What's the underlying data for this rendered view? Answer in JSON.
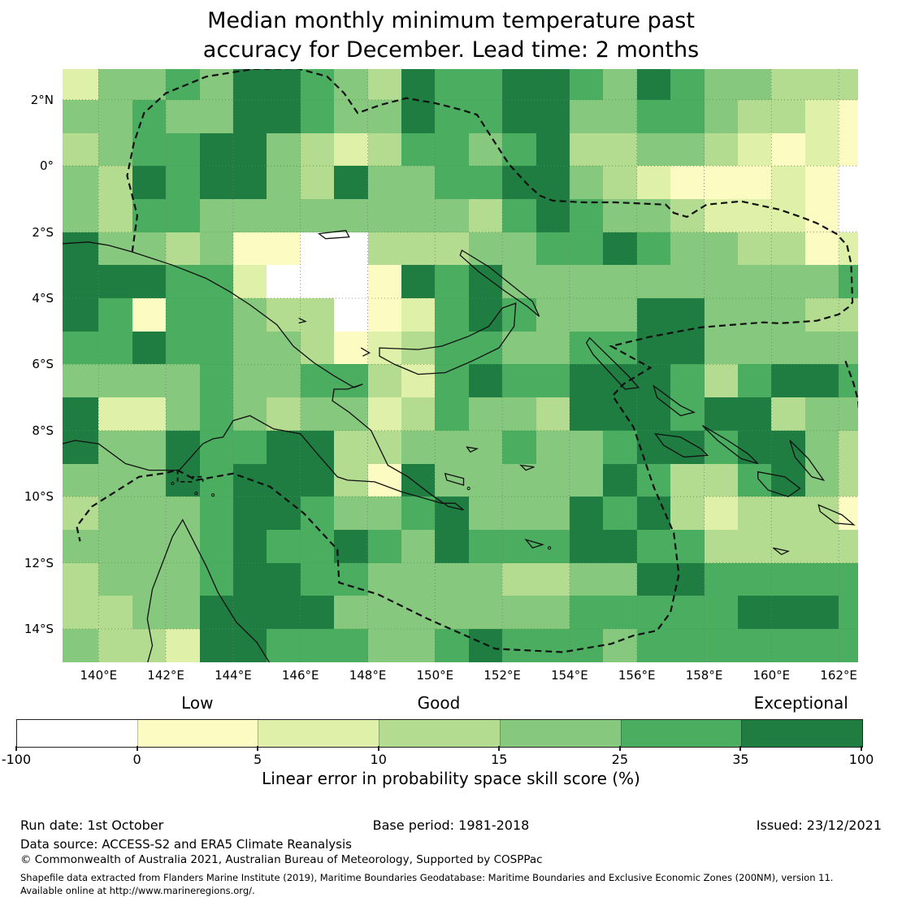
{
  "title": {
    "line1": "Median monthly minimum temperature past",
    "line2": "accuracy for December. Lead time: 2 months"
  },
  "map": {
    "x_tick_labels": [
      "140°E",
      "142°E",
      "144°E",
      "146°E",
      "148°E",
      "150°E",
      "152°E",
      "154°E",
      "156°E",
      "158°E",
      "160°E",
      "162°E"
    ],
    "y_tick_labels": [
      "2°N",
      "0°",
      "2°S",
      "4°S",
      "6°S",
      "8°S",
      "10°S",
      "12°S",
      "14°S"
    ],
    "legend_classes": [
      "-100 to 0",
      "0 to 5",
      "5 to 10",
      "10 to 15",
      "15 to 25",
      "25 to 35",
      "35 to 100"
    ],
    "palette": [
      "#ffffff",
      "#fbfbc2",
      "#dff0a8",
      "#b3dc90",
      "#86c87d",
      "#4aad60",
      "#1f7d41"
    ],
    "grid_rows": [
      "2445466543655665465443334",
      "4454466544655664455433211",
      "3455664323554563344321210",
      "4365664364455664321112101",
      "4355444444443565443222101",
      "6443411003334455654433123",
      "6665520001656444444444456",
      "6515543301256544466444336",
      "5565544312355445566444445",
      "4444544553256556665356656",
      "6224543442354436665663444",
      "6446556633444544566566433",
      "4446566631644444653356432",
      "3444566544564446563233312",
      "4444565565465556655333334",
      "3444566554444334466555554",
      "3344666644444445555566655",
      "4332665554456555455555554"
    ]
  },
  "colorbar": {
    "categories": [
      {
        "label": "Low",
        "segment": 1
      },
      {
        "label": "Good",
        "segment": 3
      },
      {
        "label": "Exceptional",
        "segment": 6
      }
    ],
    "tick_labels": [
      "-100",
      "0",
      "5",
      "10",
      "15",
      "25",
      "35",
      "100"
    ],
    "colors": [
      "#ffffff",
      "#fbfbc2",
      "#dff0a8",
      "#b3dc90",
      "#86c87d",
      "#4aad60",
      "#1f7d41"
    ],
    "axis_label": "Linear error in probability space skill score (%)"
  },
  "footer": {
    "run_date": "Run date: 1st October",
    "base_period": "Base period: 1981-2018",
    "issued": "Issued: 23/12/2021",
    "data_source": "Data source: ACCESS-S2 and ERA5 Climate Reanalysis",
    "copyright": "© Commonwealth of Australia 2021, Australian Bureau of Meteorology, Supported by COSPPac",
    "shapefile_note": "Shapefile data extracted from Flanders Marine Institute (2019), Maritime Boundaries Geodatabase: Maritime Boundaries and Exclusive Economic Zones (200NM), version 11.",
    "shapefile_url_note": "Available online at http://www.marineregions.org/."
  }
}
